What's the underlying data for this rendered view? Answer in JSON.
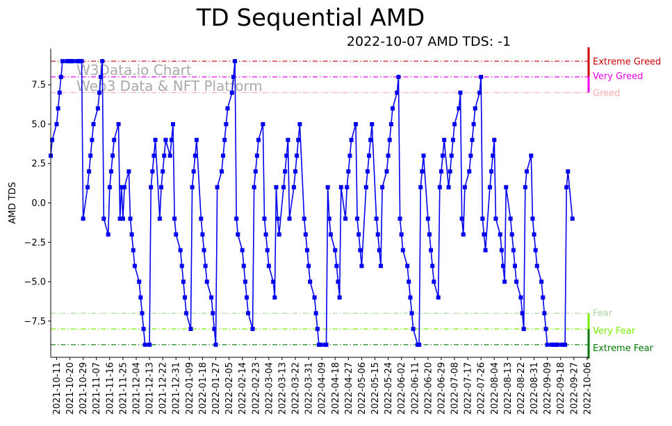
{
  "chart_data": {
    "type": "line",
    "title": "TD Sequential AMD",
    "subtitle": "2022-10-07 AMD TDS: -1",
    "xlabel": "",
    "ylabel": "AMD TDS",
    "ylim": [
      -9.8,
      9.8
    ],
    "yticks": [
      {
        "value": 7.5,
        "label": "7.5"
      },
      {
        "value": 5.0,
        "label": "5.0"
      },
      {
        "value": 2.5,
        "label": "2.5"
      },
      {
        "value": 0.0,
        "label": "0.0"
      },
      {
        "value": -2.5,
        "label": "−2.5"
      },
      {
        "value": -5.0,
        "label": "−5.0"
      },
      {
        "value": -7.5,
        "label": "−7.5"
      }
    ],
    "xticks": [
      "2021-10-11",
      "2021-10-20",
      "2021-10-29",
      "2021-11-07",
      "2021-11-16",
      "2021-11-25",
      "2021-12-04",
      "2021-12-13",
      "2021-12-22",
      "2021-12-31",
      "2022-01-09",
      "2022-01-18",
      "2022-01-27",
      "2022-02-05",
      "2022-02-14",
      "2022-02-23",
      "2022-03-04",
      "2022-03-13",
      "2022-03-22",
      "2022-03-31",
      "2022-04-09",
      "2022-04-18",
      "2022-04-27",
      "2022-05-06",
      "2022-05-15",
      "2022-05-24",
      "2022-06-02",
      "2022-06-11",
      "2022-06-20",
      "2022-06-29",
      "2022-07-08",
      "2022-07-17",
      "2022-07-26",
      "2022-08-04",
      "2022-08-13",
      "2022-08-22",
      "2022-08-31",
      "2022-09-09",
      "2022-09-18",
      "2022-09-27",
      "2022-10-06"
    ],
    "series": [
      {
        "color": "#0000ee",
        "x_start": "2021-10-07",
        "values": [
          3,
          4,
          5,
          6,
          7,
          8,
          9,
          9,
          9,
          9,
          9,
          9,
          9,
          9,
          9,
          9,
          -1,
          1,
          2,
          3,
          4,
          5,
          6,
          7,
          8,
          9,
          -1,
          -2,
          1,
          2,
          3,
          4,
          5,
          -1,
          1,
          -1,
          1,
          2,
          -1,
          -2,
          -3,
          -4,
          -5,
          -6,
          -7,
          -8,
          -9,
          -9,
          1,
          2,
          3,
          4,
          -1,
          1,
          2,
          3,
          4,
          3,
          4,
          5,
          -1,
          -2,
          -3,
          -4,
          -5,
          -6,
          -7,
          -8,
          1,
          2,
          3,
          4,
          -1,
          -2,
          -3,
          -4,
          -5,
          -6,
          -7,
          -8,
          -9,
          1,
          2,
          3,
          4,
          5,
          6,
          7,
          8,
          9,
          -1,
          -2,
          -3,
          -4,
          -5,
          -6,
          -7,
          -8,
          1,
          2,
          3,
          4,
          5,
          -1,
          -2,
          -3,
          -4,
          -5,
          -6,
          1,
          -1,
          -2,
          1,
          2,
          3,
          4,
          -1,
          1,
          2,
          3,
          4,
          5,
          -1,
          -2,
          -3,
          -4,
          -5,
          -6,
          -7,
          -8,
          -9,
          -9,
          -9,
          -9,
          1,
          -1,
          -2,
          -3,
          -4,
          -5,
          -6,
          1,
          -1,
          1,
          2,
          3,
          4,
          5,
          -1,
          -2,
          -3,
          -4,
          1,
          2,
          3,
          4,
          5,
          -1,
          -2,
          -3,
          -4,
          1,
          2,
          3,
          4,
          5,
          6,
          7,
          8,
          -1,
          -2,
          -3,
          -4,
          -5,
          -6,
          -7,
          -8,
          -9,
          -9,
          1,
          2,
          3,
          -1,
          -2,
          -3,
          -4,
          -5,
          -6,
          1,
          2,
          3,
          4,
          1,
          2,
          3,
          4,
          5,
          6,
          7,
          -1,
          -2,
          1,
          2,
          3,
          4,
          5,
          6,
          7,
          8,
          -1,
          -2,
          -3,
          1,
          2,
          3,
          4,
          -1,
          -2,
          -3,
          -4,
          -5,
          1,
          -1,
          -2,
          -3,
          -4,
          -5,
          -6,
          -7,
          -8,
          1,
          2,
          3,
          -1,
          -2,
          -3,
          -4,
          -5,
          -6,
          -7,
          -8,
          -9,
          -9,
          -9,
          -9,
          -9,
          -9,
          -9,
          -9,
          -9,
          1,
          2,
          -1
        ]
      }
    ],
    "levels": [
      {
        "value": 9,
        "label": "Extreme Greed",
        "color": "#cc0000"
      },
      {
        "value": 8,
        "label": "Very Greed",
        "color": "#ee00ee"
      },
      {
        "value": 7,
        "label": "Greed",
        "color": "#ffaaaa"
      },
      {
        "value": -7,
        "label": "Fear",
        "color": "#a8d8a0"
      },
      {
        "value": -8,
        "label": "Very Fear",
        "color": "#77ee00"
      },
      {
        "value": -9,
        "label": "Extreme Fear",
        "color": "#007700"
      }
    ],
    "watermark": [
      "W3Data.io Chart",
      "Web3 Data & NFT Platform"
    ],
    "grid": false,
    "legend": "none"
  }
}
